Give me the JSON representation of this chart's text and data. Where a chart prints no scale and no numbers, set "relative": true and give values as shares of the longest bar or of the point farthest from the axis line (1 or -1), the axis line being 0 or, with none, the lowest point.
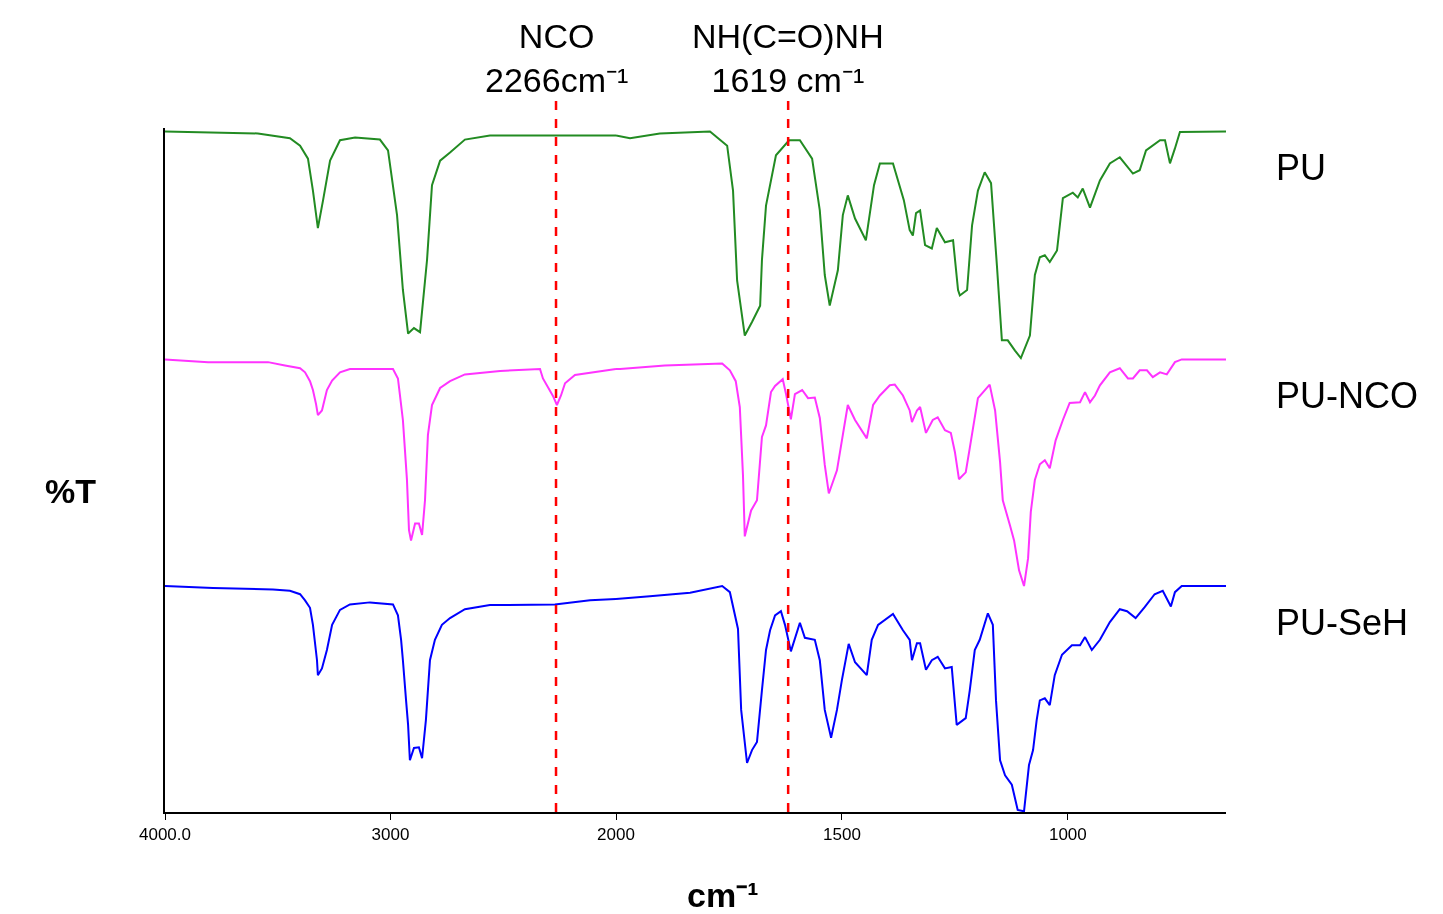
{
  "chart_data": [
    {
      "type": "line",
      "relative": true,
      "ylabel": "%T",
      "legend": false,
      "grid": false,
      "xlim": [
        4000,
        2000
      ],
      "xticks": [
        {
          "value": 4000,
          "label": "4000.0"
        },
        3000,
        2000
      ],
      "ref_lines": [
        {
          "axis": "x",
          "value": 2266,
          "label": "NCO\n2266cm⁻¹",
          "color": "#ff0000",
          "line_style": "dashed"
        }
      ],
      "series": [
        {
          "color": "#228b22",
          "x": [
            4000,
            3588,
            3446,
            3401,
            3366,
            3344,
            3322,
            3299,
            3268,
            3224,
            3157,
            3047,
            3011,
            2971,
            2945,
            2922,
            2896,
            2869,
            2838,
            2816,
            2780,
            2736,
            2670,
            2559,
            2071,
            2000
          ],
          "values": [
            1.0,
            0.997,
            0.99,
            0.979,
            0.96,
            0.913,
            0.858,
            0.899,
            0.957,
            0.987,
            0.991,
            0.988,
            0.972,
            0.877,
            0.767,
            0.703,
            0.711,
            0.705,
            0.811,
            0.921,
            0.957,
            0.969,
            0.988,
            0.994,
            0.994,
            0.994
          ]
        },
        {
          "color": "#ff33ff",
          "x": [
            4000,
            3809,
            3543,
            3468,
            3401,
            3379,
            3357,
            3344,
            3330,
            3322,
            3304,
            3282,
            3259,
            3224,
            3180,
            2989,
            2967,
            2958,
            2945,
            2936,
            2927,
            2918,
            2909,
            2891,
            2874,
            2860,
            2847,
            2834,
            2816,
            2780,
            2736,
            2670,
            2514,
            2337,
            2324,
            2279,
            2262,
            2244,
            2226,
            2182,
            2000
          ],
          "values": [
            0.665,
            0.661,
            0.661,
            0.656,
            0.652,
            0.646,
            0.633,
            0.62,
            0.599,
            0.583,
            0.59,
            0.62,
            0.634,
            0.646,
            0.651,
            0.651,
            0.637,
            0.612,
            0.576,
            0.532,
            0.488,
            0.414,
            0.399,
            0.424,
            0.424,
            0.407,
            0.458,
            0.554,
            0.598,
            0.623,
            0.633,
            0.643,
            0.648,
            0.651,
            0.637,
            0.611,
            0.598,
            0.612,
            0.63,
            0.642,
            0.651
          ]
        },
        {
          "color": "#0000ff",
          "x": [
            4000,
            3787,
            3521,
            3446,
            3401,
            3379,
            3357,
            3344,
            3326,
            3322,
            3304,
            3282,
            3259,
            3224,
            3180,
            3091,
            2989,
            2967,
            2953,
            2945,
            2931,
            2922,
            2914,
            2896,
            2874,
            2860,
            2843,
            2825,
            2803,
            2772,
            2736,
            2670,
            2559,
            2271,
            2115,
            2000
          ],
          "values": [
            0.332,
            0.329,
            0.327,
            0.325,
            0.32,
            0.311,
            0.3,
            0.275,
            0.223,
            0.201,
            0.211,
            0.238,
            0.275,
            0.297,
            0.305,
            0.308,
            0.305,
            0.289,
            0.253,
            0.223,
            0.164,
            0.128,
            0.076,
            0.094,
            0.095,
            0.079,
            0.135,
            0.223,
            0.253,
            0.275,
            0.285,
            0.298,
            0.304,
            0.305,
            0.311,
            0.313
          ]
        }
      ]
    },
    {
      "type": "line",
      "relative": true,
      "xlabel": "cm⁻¹",
      "legend": false,
      "grid": false,
      "xlim": [
        2000,
        650
      ],
      "xticks": [
        1500,
        1000
      ],
      "ref_lines": [
        {
          "axis": "x",
          "value": 1619,
          "label": "NH(C=O)NH\n1619 cm⁻¹",
          "color": "#ff0000",
          "line_style": "dashed"
        }
      ],
      "series": [
        {
          "name": "PU",
          "color": "#228b22",
          "x": [
            2000,
            1969,
            1903,
            1792,
            1754,
            1741,
            1732,
            1715,
            1699,
            1681,
            1677,
            1668,
            1646,
            1617,
            1593,
            1566,
            1549,
            1538,
            1527,
            1509,
            1498,
            1487,
            1471,
            1447,
            1429,
            1416,
            1387,
            1363,
            1350,
            1343,
            1336,
            1327,
            1316,
            1301,
            1290,
            1272,
            1254,
            1243,
            1239,
            1223,
            1212,
            1199,
            1184,
            1170,
            1157,
            1146,
            1133,
            1117,
            1104,
            1084,
            1073,
            1062,
            1051,
            1040,
            1024,
            1011,
            989,
            978,
            967,
            951,
            929,
            907,
            885,
            856,
            841,
            827,
            796,
            785,
            774,
            763,
            752,
            650
          ],
          "values": [
            0.994,
            0.99,
            0.997,
            1.0,
            0.979,
            0.913,
            0.781,
            0.7,
            0.72,
            0.744,
            0.811,
            0.891,
            0.965,
            0.987,
            0.987,
            0.96,
            0.884,
            0.789,
            0.744,
            0.796,
            0.877,
            0.906,
            0.872,
            0.84,
            0.921,
            0.953,
            0.953,
            0.899,
            0.855,
            0.847,
            0.88,
            0.884,
            0.833,
            0.828,
            0.858,
            0.837,
            0.84,
            0.767,
            0.759,
            0.767,
            0.862,
            0.913,
            0.94,
            0.924,
            0.803,
            0.693,
            0.693,
            0.678,
            0.667,
            0.7,
            0.789,
            0.815,
            0.818,
            0.808,
            0.825,
            0.902,
            0.91,
            0.903,
            0.916,
            0.888,
            0.928,
            0.953,
            0.962,
            0.938,
            0.943,
            0.972,
            0.987,
            0.987,
            0.953,
            0.975,
            0.999,
            1.0
          ]
        },
        {
          "name": "PU-NCO",
          "color": "#ff33ff",
          "x": [
            2000,
            1991,
            1892,
            1765,
            1748,
            1735,
            1726,
            1719,
            1715,
            1701,
            1688,
            1677,
            1668,
            1657,
            1648,
            1631,
            1624,
            1613,
            1604,
            1588,
            1575,
            1560,
            1549,
            1538,
            1529,
            1511,
            1498,
            1487,
            1471,
            1445,
            1431,
            1416,
            1394,
            1383,
            1365,
            1350,
            1345,
            1334,
            1327,
            1314,
            1299,
            1288,
            1272,
            1259,
            1250,
            1241,
            1226,
            1217,
            1199,
            1173,
            1161,
            1150,
            1144,
            1128,
            1119,
            1108,
            1097,
            1088,
            1082,
            1073,
            1062,
            1051,
            1040,
            1027,
            1011,
            996,
            973,
            962,
            951,
            940,
            929,
            907,
            885,
            867,
            856,
            841,
            825,
            812,
            796,
            781,
            763,
            748,
            650
          ],
          "values": [
            0.651,
            0.651,
            0.656,
            0.659,
            0.649,
            0.633,
            0.595,
            0.495,
            0.405,
            0.443,
            0.458,
            0.551,
            0.568,
            0.617,
            0.626,
            0.636,
            0.615,
            0.577,
            0.614,
            0.62,
            0.608,
            0.609,
            0.579,
            0.51,
            0.468,
            0.502,
            0.554,
            0.598,
            0.576,
            0.549,
            0.598,
            0.612,
            0.627,
            0.628,
            0.612,
            0.59,
            0.573,
            0.59,
            0.595,
            0.557,
            0.576,
            0.58,
            0.561,
            0.557,
            0.529,
            0.489,
            0.499,
            0.535,
            0.608,
            0.628,
            0.59,
            0.514,
            0.458,
            0.421,
            0.399,
            0.355,
            0.332,
            0.373,
            0.441,
            0.488,
            0.511,
            0.517,
            0.505,
            0.546,
            0.576,
            0.601,
            0.602,
            0.617,
            0.602,
            0.612,
            0.627,
            0.646,
            0.652,
            0.637,
            0.637,
            0.649,
            0.649,
            0.639,
            0.646,
            0.643,
            0.661,
            0.665,
            0.665
          ]
        },
        {
          "name": "PU-SeH",
          "color": "#0000ff",
          "x": [
            2000,
            1925,
            1836,
            1765,
            1748,
            1730,
            1723,
            1710,
            1699,
            1688,
            1677,
            1668,
            1659,
            1648,
            1635,
            1626,
            1613,
            1593,
            1582,
            1560,
            1549,
            1538,
            1524,
            1511,
            1500,
            1485,
            1471,
            1445,
            1434,
            1420,
            1387,
            1365,
            1350,
            1345,
            1334,
            1327,
            1314,
            1301,
            1288,
            1272,
            1257,
            1246,
            1226,
            1217,
            1206,
            1195,
            1177,
            1166,
            1159,
            1150,
            1139,
            1124,
            1111,
            1097,
            1086,
            1077,
            1069,
            1062,
            1051,
            1040,
            1029,
            1013,
            991,
            973,
            962,
            947,
            929,
            907,
            885,
            869,
            850,
            830,
            808,
            790,
            772,
            763,
            748,
            650
          ],
          "values": [
            0.313,
            0.317,
            0.322,
            0.332,
            0.323,
            0.269,
            0.15,
            0.072,
            0.091,
            0.103,
            0.179,
            0.238,
            0.267,
            0.289,
            0.295,
            0.275,
            0.236,
            0.278,
            0.256,
            0.253,
            0.223,
            0.15,
            0.109,
            0.15,
            0.194,
            0.247,
            0.22,
            0.201,
            0.253,
            0.275,
            0.291,
            0.267,
            0.253,
            0.223,
            0.248,
            0.248,
            0.209,
            0.223,
            0.228,
            0.211,
            0.213,
            0.128,
            0.138,
            0.179,
            0.238,
            0.253,
            0.292,
            0.275,
            0.164,
            0.076,
            0.054,
            0.04,
            0.003,
            0.001,
            0.069,
            0.091,
            0.135,
            0.164,
            0.167,
            0.157,
            0.201,
            0.231,
            0.245,
            0.245,
            0.257,
            0.238,
            0.253,
            0.279,
            0.298,
            0.295,
            0.285,
            0.301,
            0.32,
            0.325,
            0.302,
            0.323,
            0.332,
            0.332
          ]
        }
      ]
    }
  ]
}
